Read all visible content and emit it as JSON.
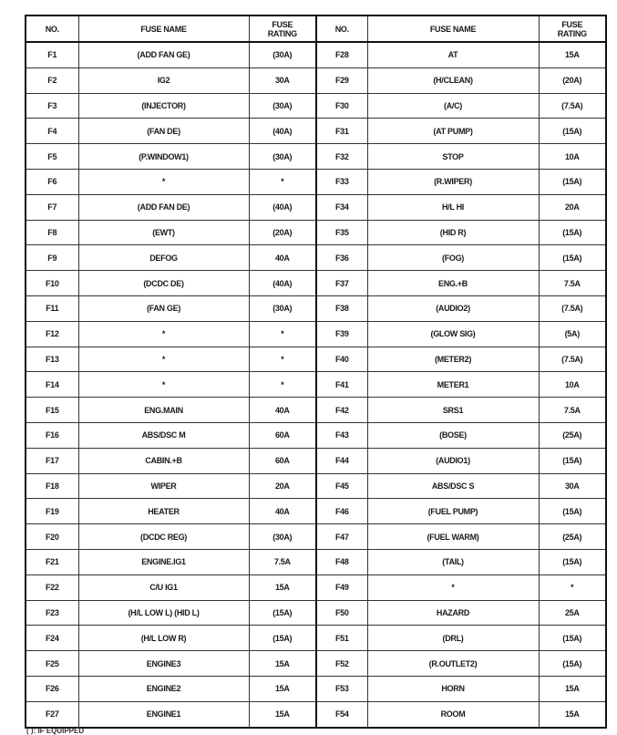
{
  "headers": {
    "no": "NO.",
    "name": "FUSE NAME",
    "rating_line1": "FUSE",
    "rating_line2": "RATING"
  },
  "left": [
    [
      "F1",
      "(ADD FAN GE)",
      "(30A)"
    ],
    [
      "F2",
      "IG2",
      "30A"
    ],
    [
      "F3",
      "(INJECTOR)",
      "(30A)"
    ],
    [
      "F4",
      "(FAN DE)",
      "(40A)"
    ],
    [
      "F5",
      "(P.WINDOW1)",
      "(30A)"
    ],
    [
      "F6",
      "*",
      "*"
    ],
    [
      "F7",
      "(ADD FAN DE)",
      "(40A)"
    ],
    [
      "F8",
      "(EWT)",
      "(20A)"
    ],
    [
      "F9",
      "DEFOG",
      "40A"
    ],
    [
      "F10",
      "(DCDC DE)",
      "(40A)"
    ],
    [
      "F11",
      "(FAN GE)",
      "(30A)"
    ],
    [
      "F12",
      "*",
      "*"
    ],
    [
      "F13",
      "*",
      "*"
    ],
    [
      "F14",
      "*",
      "*"
    ],
    [
      "F15",
      "ENG.MAIN",
      "40A"
    ],
    [
      "F16",
      "ABS/DSC M",
      "60A"
    ],
    [
      "F17",
      "CABIN.+B",
      "60A"
    ],
    [
      "F18",
      "WIPER",
      "20A"
    ],
    [
      "F19",
      "HEATER",
      "40A"
    ],
    [
      "F20",
      "(DCDC REG)",
      "(30A)"
    ],
    [
      "F21",
      "ENGINE.IG1",
      "7.5A"
    ],
    [
      "F22",
      "C/U IG1",
      "15A"
    ],
    [
      "F23",
      "(H/L LOW L) (HID L)",
      "(15A)"
    ],
    [
      "F24",
      "(H/L LOW R)",
      "(15A)"
    ],
    [
      "F25",
      "ENGINE3",
      "15A"
    ],
    [
      "F26",
      "ENGINE2",
      "15A"
    ],
    [
      "F27",
      "ENGINE1",
      "15A"
    ]
  ],
  "right": [
    [
      "F28",
      "AT",
      "15A"
    ],
    [
      "F29",
      "(H/CLEAN)",
      "(20A)"
    ],
    [
      "F30",
      "(A/C)",
      "(7.5A)"
    ],
    [
      "F31",
      "(AT PUMP)",
      "(15A)"
    ],
    [
      "F32",
      "STOP",
      "10A"
    ],
    [
      "F33",
      "(R.WIPER)",
      "(15A)"
    ],
    [
      "F34",
      "H/L HI",
      "20A"
    ],
    [
      "F35",
      "(HID R)",
      "(15A)"
    ],
    [
      "F36",
      "(FOG)",
      "(15A)"
    ],
    [
      "F37",
      "ENG.+B",
      "7.5A"
    ],
    [
      "F38",
      "(AUDIO2)",
      "(7.5A)"
    ],
    [
      "F39",
      "(GLOW SIG)",
      "(5A)"
    ],
    [
      "F40",
      "(METER2)",
      "(7.5A)"
    ],
    [
      "F41",
      "METER1",
      "10A"
    ],
    [
      "F42",
      "SRS1",
      "7.5A"
    ],
    [
      "F43",
      "(BOSE)",
      "(25A)"
    ],
    [
      "F44",
      "(AUDIO1)",
      "(15A)"
    ],
    [
      "F45",
      "ABS/DSC S",
      "30A"
    ],
    [
      "F46",
      "(FUEL PUMP)",
      "(15A)"
    ],
    [
      "F47",
      "(FUEL WARM)",
      "(25A)"
    ],
    [
      "F48",
      "(TAIL)",
      "(15A)"
    ],
    [
      "F49",
      "*",
      "*"
    ],
    [
      "F50",
      "HAZARD",
      "25A"
    ],
    [
      "F51",
      "(DRL)",
      "(15A)"
    ],
    [
      "F52",
      "(R.OUTLET2)",
      "(15A)"
    ],
    [
      "F53",
      "HORN",
      "15A"
    ],
    [
      "F54",
      "ROOM",
      "15A"
    ]
  ],
  "footnote": "( ): IF EQUIPPED"
}
